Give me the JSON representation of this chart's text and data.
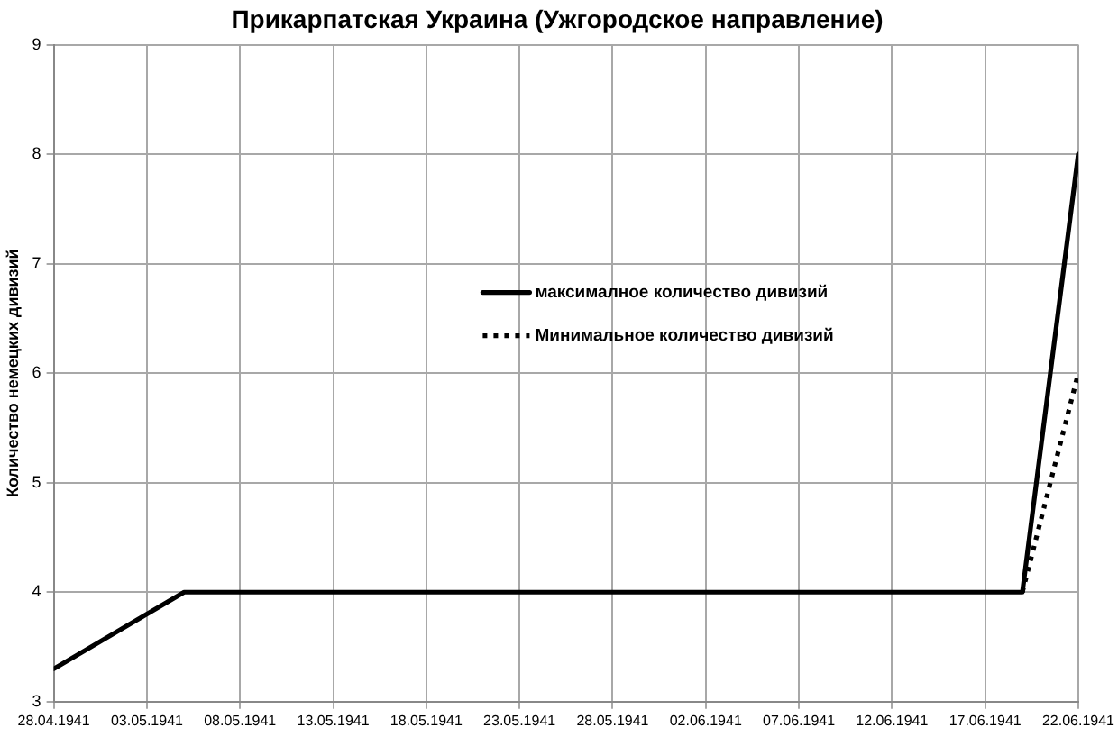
{
  "chart_data": {
    "type": "line",
    "title": "Прикарпатская Украина (Ужгородское направление)",
    "ylabel": "Количество немецких дивизий",
    "series": [
      {
        "name": "максималное количество дивизий",
        "color": "#000000",
        "line_style": "solid",
        "x": [
          "1941-04-28",
          "1941-05-05",
          "1941-06-19",
          "1941-06-22"
        ],
        "values": [
          3.3,
          4,
          4,
          8
        ]
      },
      {
        "name": "Минимальное количество дивизий",
        "color": "#000000",
        "line_style": "dotted",
        "x": [
          "1941-06-19",
          "1941-06-22"
        ],
        "values": [
          4,
          6
        ]
      }
    ],
    "xlim": [
      "1941-04-28",
      "1941-06-22"
    ],
    "xticks": [
      {
        "value": "1941-04-28",
        "label": "28.04.1941"
      },
      {
        "value": "1941-05-03",
        "label": "03.05.1941"
      },
      {
        "value": "1941-05-08",
        "label": "08.05.1941"
      },
      {
        "value": "1941-05-13",
        "label": "13.05.1941"
      },
      {
        "value": "1941-05-18",
        "label": "18.05.1941"
      },
      {
        "value": "1941-05-23",
        "label": "23.05.1941"
      },
      {
        "value": "1941-05-28",
        "label": "28.05.1941"
      },
      {
        "value": "1941-06-02",
        "label": "02.06.1941"
      },
      {
        "value": "1941-06-07",
        "label": "07.06.1941"
      },
      {
        "value": "1941-06-12",
        "label": "12.06.1941"
      },
      {
        "value": "1941-06-17",
        "label": "17.06.1941"
      },
      {
        "value": "1941-06-22",
        "label": "22.06.1941"
      }
    ],
    "ylim": [
      3,
      9
    ],
    "yticks": [
      3,
      4,
      5,
      6,
      7,
      8,
      9
    ],
    "grid": true,
    "legend": "center",
    "marker": "none"
  }
}
